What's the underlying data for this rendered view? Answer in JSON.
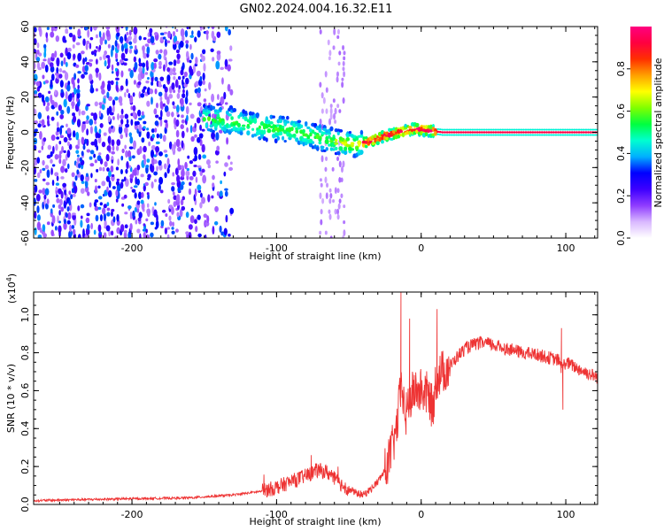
{
  "title": "GN02.2024.004.16.32.E11",
  "chart_data": [
    {
      "type": "heatmap",
      "title": "GN02.2024.004.16.32.E11",
      "xlabel": "Height of straight line (km)",
      "ylabel": "Frequency (Hz)",
      "xlim": [
        -268,
        122
      ],
      "ylim": [
        -60,
        60
      ],
      "x_ticks": [
        "-200",
        "-100",
        "0",
        "100"
      ],
      "x_tick_values": [
        -200,
        -100,
        0,
        100
      ],
      "y_ticks": [
        "-60",
        "-40",
        "-20",
        "0",
        "20",
        "40",
        "60"
      ],
      "y_tick_values": [
        -60,
        -40,
        -20,
        0,
        20,
        40,
        60
      ],
      "colorbar": {
        "label": "Normalized spectral amplitude",
        "range": [
          0,
          1
        ],
        "ticks": [
          "0.0",
          "0.2",
          "0.4",
          "0.6",
          "0.8"
        ],
        "tick_values": [
          0,
          0.2,
          0.4,
          0.6,
          0.8
        ],
        "colors": [
          "#ffffff",
          "#d9b8ff",
          "#8f3cff",
          "#3d00ff",
          "#0000ff",
          "#00b0ff",
          "#00ffd0",
          "#00ff40",
          "#80ff00",
          "#ffff00",
          "#ffa000",
          "#ff3000",
          "#ff0040",
          "#ff0080"
        ]
      },
      "ridge": {
        "x": [
          -150,
          -130,
          -110,
          -90,
          -70,
          -55,
          -45,
          -35,
          -25,
          -15,
          -5,
          5,
          15,
          122
        ],
        "freq": [
          8,
          6,
          3,
          1,
          -3,
          -6,
          -7,
          -5,
          -2,
          0,
          2,
          1,
          0,
          0
        ]
      },
      "grid": false
    },
    {
      "type": "line",
      "xlabel": "Height of straight line (km)",
      "ylabel": "SNR (10 * v/v)",
      "y_multiplier": "(x10",
      "y_multiplier_exp": "4",
      "y_multiplier_close": ")",
      "xlim": [
        -268,
        122
      ],
      "ylim": [
        0,
        1.12
      ],
      "x_ticks": [
        "-200",
        "-100",
        "0",
        "100"
      ],
      "x_tick_values": [
        -200,
        -100,
        0,
        100
      ],
      "y_ticks": [
        "0.0",
        "0.2",
        "0.4",
        "0.6",
        "0.8",
        "1.0"
      ],
      "y_tick_values": [
        0,
        0.2,
        0.4,
        0.6,
        0.8,
        1.0
      ],
      "series_color": "#ee3333",
      "x": [
        -268,
        -240,
        -200,
        -160,
        -130,
        -110,
        -100,
        -90,
        -80,
        -72,
        -65,
        -58,
        -50,
        -45,
        -40,
        -35,
        -30,
        -25,
        -20,
        -17,
        -15,
        -13,
        -11,
        -8,
        -5,
        0,
        5,
        8,
        10,
        12,
        15,
        20,
        25,
        30,
        35,
        40,
        45,
        50,
        55,
        60,
        70,
        80,
        90,
        95,
        97,
        100,
        110,
        122
      ],
      "values": [
        0.02,
        0.025,
        0.03,
        0.035,
        0.05,
        0.07,
        0.09,
        0.12,
        0.15,
        0.18,
        0.17,
        0.12,
        0.08,
        0.06,
        0.05,
        0.08,
        0.12,
        0.18,
        0.3,
        0.4,
        0.55,
        0.62,
        0.45,
        0.55,
        0.6,
        0.6,
        0.58,
        0.5,
        0.65,
        0.68,
        0.7,
        0.73,
        0.78,
        0.82,
        0.84,
        0.85,
        0.85,
        0.84,
        0.83,
        0.82,
        0.8,
        0.79,
        0.77,
        0.76,
        0.72,
        0.75,
        0.71,
        0.67
      ],
      "spikes": [
        {
          "x": -14,
          "value": 1.12
        },
        {
          "x": -8,
          "value": 0.98
        },
        {
          "x": 11,
          "value": 1.03
        },
        {
          "x": 97,
          "value": 0.93
        },
        {
          "x": 98,
          "value": 0.5
        },
        {
          "x": -76,
          "value": 0.26
        }
      ],
      "grid": false
    }
  ]
}
